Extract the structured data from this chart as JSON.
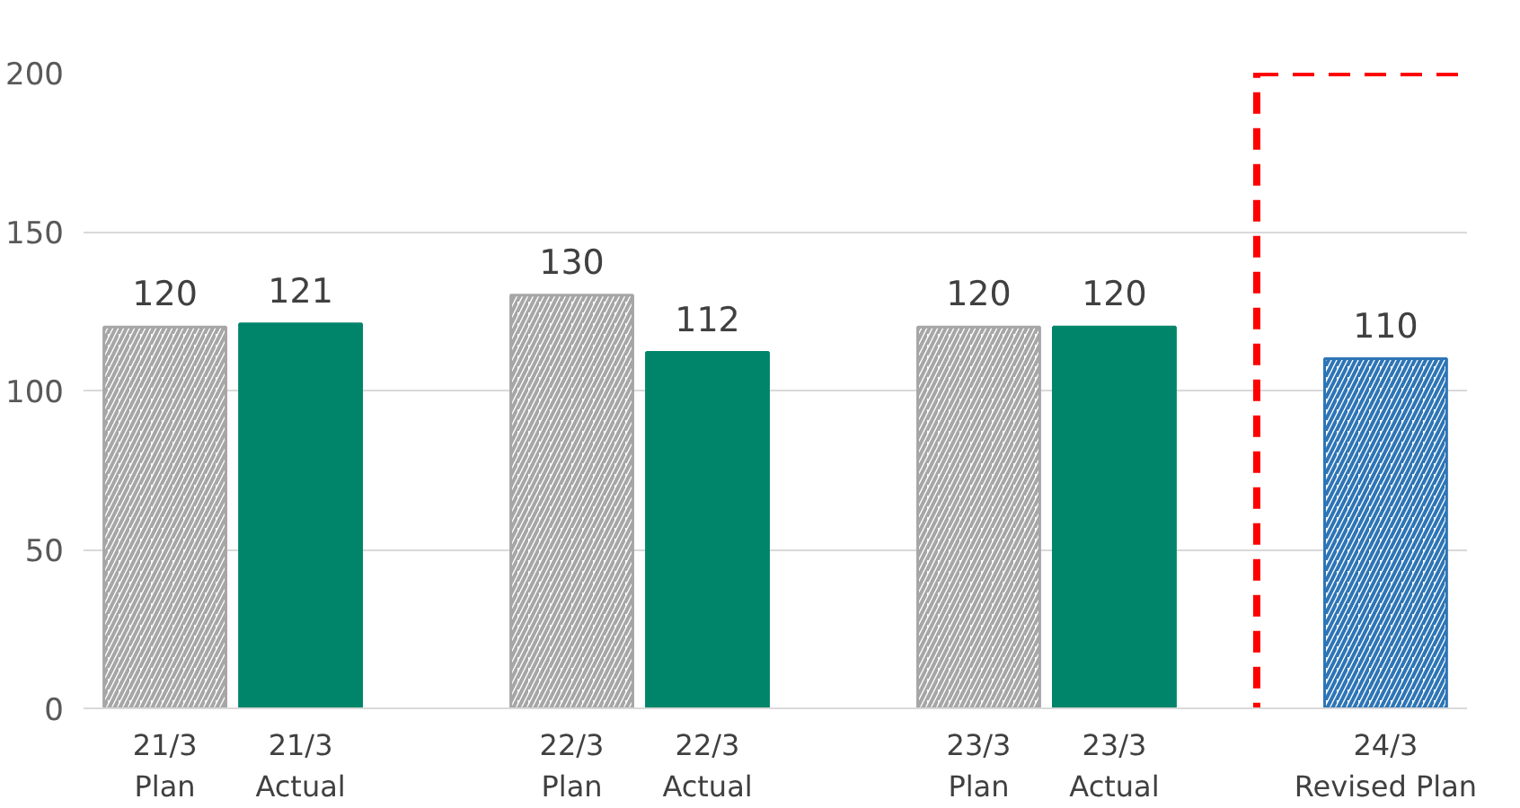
{
  "chart_data": {
    "type": "bar",
    "categories": [
      "21/3\nPlan",
      "21/3\nActual",
      null,
      "22/3\nPlan",
      "22/3\nActual",
      null,
      "23/3\nPlan",
      "23/3\nActual",
      null,
      "24/3\nRevised Plan"
    ],
    "series": [
      {
        "color": "#a6a6a6",
        "values": [
          120,
          null,
          null,
          130,
          null,
          null,
          120,
          null,
          null,
          null
        ]
      },
      {
        "color": "#00856a",
        "values": [
          null,
          121,
          null,
          null,
          112,
          null,
          null,
          120,
          null,
          null
        ]
      },
      {
        "color": "#2e75b6",
        "values": [
          null,
          null,
          null,
          null,
          null,
          null,
          null,
          null,
          null,
          110
        ]
      }
    ],
    "ylim": [
      0,
      200
    ],
    "yticks": [
      0,
      50,
      100,
      150,
      200
    ],
    "grid": "y",
    "data_labels": true
  }
}
